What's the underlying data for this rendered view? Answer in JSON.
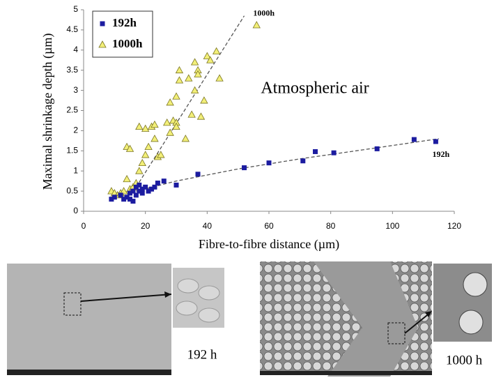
{
  "chart_data": {
    "type": "scatter",
    "xlabel": "Fibre-to-fibre distance (µm)",
    "ylabel": "Maximal shrinkage depth (µm)",
    "annotation": "Atmospheric air",
    "xlim": [
      0,
      120
    ],
    "xticks": [
      0,
      20,
      40,
      60,
      80,
      100,
      120
    ],
    "ylim": [
      0,
      5
    ],
    "yticks": [
      0,
      0.5,
      1,
      1.5,
      2,
      2.5,
      3,
      3.5,
      4,
      4.5,
      5
    ],
    "legend": "upper left",
    "series": [
      {
        "name": "192h",
        "color": "#1c1ca0",
        "marker": "square",
        "x": [
          9,
          10,
          12,
          13,
          14,
          15,
          15,
          16,
          16,
          17,
          17,
          18,
          18,
          19,
          19,
          20,
          21,
          22,
          23,
          24,
          26,
          30,
          37,
          52,
          60,
          71,
          75,
          81,
          95,
          107,
          114
        ],
        "values": [
          0.3,
          0.35,
          0.4,
          0.3,
          0.35,
          0.3,
          0.45,
          0.25,
          0.5,
          0.4,
          0.6,
          0.5,
          0.65,
          0.45,
          0.55,
          0.6,
          0.5,
          0.55,
          0.6,
          0.7,
          0.75,
          0.65,
          0.92,
          1.08,
          1.2,
          1.25,
          1.48,
          1.45,
          1.55,
          1.78,
          1.73
        ]
      },
      {
        "name": "1000h",
        "color": "#f2ef78",
        "marker": "triangle",
        "x": [
          9,
          10,
          11,
          12,
          13,
          14,
          14,
          15,
          15,
          16,
          17,
          18,
          18,
          19,
          20,
          20,
          21,
          22,
          23,
          23,
          24,
          25,
          27,
          28,
          28,
          29,
          30,
          30,
          30,
          31,
          31,
          33,
          34,
          35,
          36,
          36,
          37,
          37,
          38,
          39,
          40,
          41,
          43,
          44,
          56
        ],
        "values": [
          0.5,
          0.45,
          0.4,
          0.45,
          0.5,
          0.8,
          1.6,
          1.55,
          0.55,
          0.6,
          0.7,
          1.0,
          2.1,
          1.2,
          1.4,
          2.05,
          1.6,
          2.1,
          1.8,
          2.15,
          1.35,
          1.4,
          2.2,
          2.7,
          1.95,
          2.25,
          2.2,
          2.1,
          2.85,
          3.5,
          3.25,
          1.8,
          3.3,
          2.4,
          3.0,
          3.7,
          3.5,
          3.4,
          2.35,
          2.75,
          3.85,
          3.75,
          3.97,
          3.3,
          4.62
        ]
      }
    ],
    "fits": [
      {
        "label": "1000h",
        "x": [
          17,
          52
        ],
        "y": [
          0.6,
          4.85
        ]
      },
      {
        "label": "192h",
        "x": [
          17,
          30,
          50,
          70,
          90,
          115
        ],
        "y": [
          0.5,
          0.75,
          1.05,
          1.3,
          1.52,
          1.8
        ]
      }
    ]
  },
  "images": [
    {
      "label": "192 h"
    },
    {
      "label": "1000 h"
    }
  ]
}
